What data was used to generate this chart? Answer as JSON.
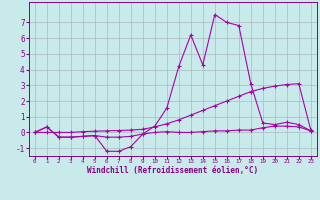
{
  "xlabel": "Windchill (Refroidissement éolien,°C)",
  "background_color": "#c8eaea",
  "grid_color": "#aabbbb",
  "line_color": "#aa00aa",
  "x_hours": [
    0,
    1,
    2,
    3,
    4,
    5,
    6,
    7,
    8,
    9,
    10,
    11,
    12,
    13,
    14,
    15,
    16,
    17,
    18,
    19,
    20,
    21,
    22,
    23
  ],
  "series1": [
    0.0,
    0.35,
    -0.3,
    -0.3,
    -0.25,
    -0.2,
    -0.3,
    -0.3,
    -0.25,
    -0.1,
    0.0,
    0.05,
    0.0,
    0.0,
    0.05,
    0.1,
    0.1,
    0.15,
    0.15,
    0.3,
    0.4,
    0.4,
    0.35,
    0.1
  ],
  "series2": [
    0.0,
    0.35,
    -0.3,
    -0.3,
    -0.25,
    -0.2,
    -1.2,
    -1.2,
    -0.9,
    -0.1,
    0.4,
    1.55,
    4.2,
    6.2,
    4.3,
    7.5,
    7.0,
    6.8,
    3.1,
    0.6,
    0.5,
    0.65,
    0.5,
    0.1
  ],
  "series3": [
    0.0,
    0.0,
    0.0,
    0.0,
    0.05,
    0.08,
    0.1,
    0.12,
    0.15,
    0.2,
    0.35,
    0.55,
    0.8,
    1.1,
    1.4,
    1.7,
    2.0,
    2.3,
    2.6,
    2.8,
    2.95,
    3.05,
    3.1,
    0.15
  ],
  "ylim": [
    -1.5,
    8.3
  ],
  "yticks": [
    -1,
    0,
    1,
    2,
    3,
    4,
    5,
    6,
    7
  ],
  "xlim": [
    -0.5,
    23.5
  ]
}
